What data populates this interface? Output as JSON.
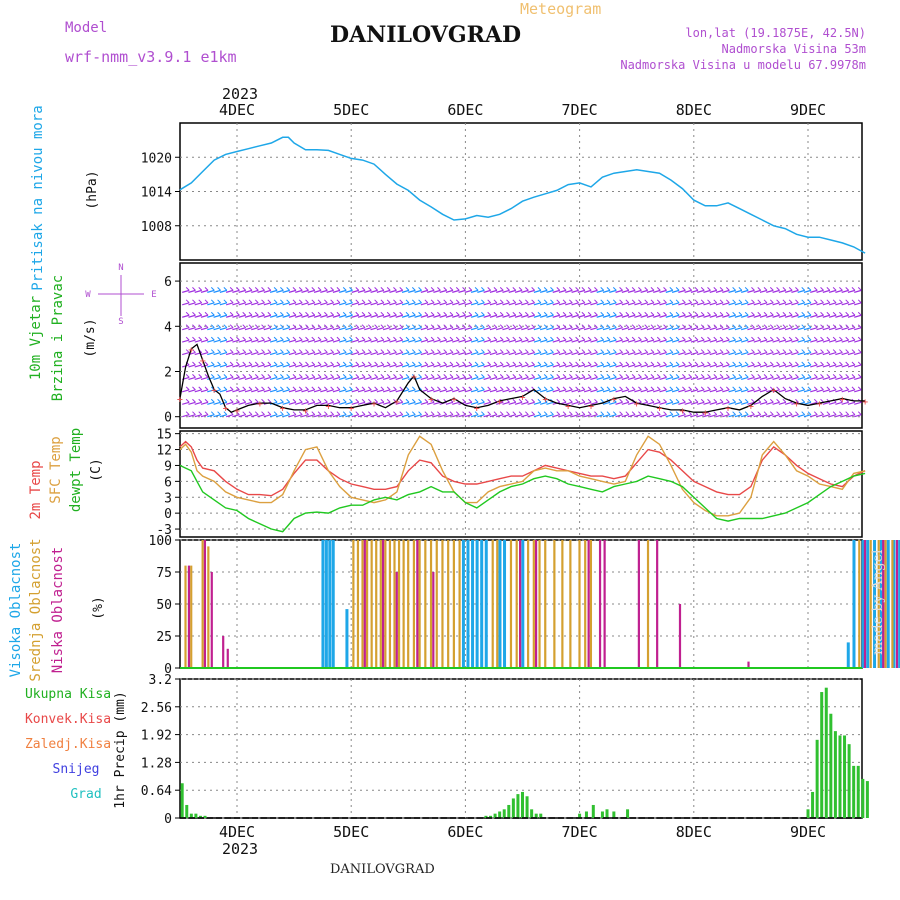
{
  "header": {
    "model_label": "Model",
    "model_name": "wrf-nmm_v3.9.1 e1km",
    "title": "DANILOVGRAD",
    "meteogram_label": "Meteogram",
    "location": "lon,lat (19.1875E, 42.5N)",
    "altitude": "Nadmorska Visina 53m",
    "model_altitude": "Nadmorska Visina u modelu 67.9978m"
  },
  "footer": {
    "station": "DANILOVGRAD"
  },
  "watermark": "made by Angel",
  "time_axis": {
    "year": "2023",
    "day_labels": [
      "4DEC",
      "5DEC",
      "6DEC",
      "7DEC",
      "8DEC",
      "9DEC"
    ]
  },
  "colors": {
    "pressure": "#1ea7e8",
    "t2m": "#e84848",
    "sfc": "#dca040",
    "dewpt": "#20c820",
    "high_cloud": "#1ea7e8",
    "mid_cloud": "#d4a030",
    "low_cloud": "#c02090",
    "precip": "#30c030",
    "wind_a": "#a030e0",
    "wind_b": "#1e90ff"
  },
  "chart_data": [
    {
      "type": "line",
      "panel": "pressure",
      "ylabel_title": "Pritisak na nivou mora",
      "ylabel_unit": "(hPa)",
      "yticks": [
        "1008",
        "1014",
        "1020"
      ],
      "ylim": [
        1002,
        1026
      ],
      "grid": true,
      "series": [
        {
          "x": [
            -0.5,
            -0.4,
            -0.3,
            -0.2,
            -0.1,
            0,
            0.1,
            0.2,
            0.3,
            0.4,
            0.45,
            0.5,
            0.6,
            0.7,
            0.8,
            0.9,
            1,
            1.1,
            1.2,
            1.3,
            1.4,
            1.5,
            1.6,
            1.7,
            1.8,
            1.9,
            2,
            2.1,
            2.2,
            2.3,
            2.4,
            2.5,
            2.6,
            2.7,
            2.8,
            2.9,
            3,
            3.1,
            3.2,
            3.3,
            3.4,
            3.5,
            3.6,
            3.7,
            3.8,
            3.9,
            4,
            4.1,
            4.2,
            4.3,
            4.4,
            4.5,
            4.6,
            4.7,
            4.8,
            4.9,
            5,
            5.1,
            5.2,
            5.3,
            5.4,
            5.5
          ],
          "values": [
            1014.3,
            1015.5,
            1017.5,
            1019.5,
            1020.5,
            1021,
            1021.5,
            1022,
            1022.5,
            1023.5,
            1023.5,
            1022.5,
            1021.3,
            1021.3,
            1021.2,
            1020.5,
            1019.8,
            1019.5,
            1018.8,
            1017,
            1015.3,
            1014.2,
            1012.5,
            1011.3,
            1010,
            1009,
            1009.2,
            1009.8,
            1009.5,
            1010,
            1011,
            1012.3,
            1013,
            1013.6,
            1014.2,
            1015.2,
            1015.5,
            1014.8,
            1016.5,
            1017.2,
            1017.5,
            1017.8,
            1017.5,
            1017.2,
            1016,
            1014.5,
            1012.5,
            1011.5,
            1011.5,
            1012,
            1011,
            1010,
            1009,
            1008,
            1007.5,
            1006.5,
            1006,
            1006,
            1005.5,
            1005,
            1004.3,
            1003.2
          ]
        }
      ]
    },
    {
      "type": "scatter",
      "panel": "wind",
      "ylabel_title": "10m Vjetar",
      "ylabel_title2": "Brzina i Pravac",
      "ylabel_unit": "(m/s)",
      "compass": [
        "N",
        "W",
        "E",
        "S"
      ],
      "yticks": [
        "0",
        "2",
        "4",
        "6"
      ],
      "ylim": [
        -0.5,
        6.8
      ],
      "grid": true,
      "series": [
        {
          "name": "speed",
          "x": [
            -0.5,
            -0.45,
            -0.4,
            -0.35,
            -0.3,
            -0.25,
            -0.2,
            -0.15,
            -0.1,
            -0.05,
            0,
            0.1,
            0.2,
            0.3,
            0.4,
            0.5,
            0.6,
            0.7,
            0.8,
            0.9,
            1,
            1.1,
            1.2,
            1.3,
            1.4,
            1.5,
            1.55,
            1.6,
            1.7,
            1.8,
            1.9,
            2,
            2.1,
            2.2,
            2.3,
            2.4,
            2.5,
            2.6,
            2.7,
            2.8,
            2.9,
            3,
            3.1,
            3.2,
            3.3,
            3.4,
            3.5,
            3.6,
            3.7,
            3.8,
            3.9,
            4,
            4.1,
            4.2,
            4.3,
            4.4,
            4.5,
            4.6,
            4.7,
            4.8,
            4.9,
            5,
            5.1,
            5.2,
            5.3,
            5.4,
            5.5
          ],
          "values": [
            0.8,
            2.2,
            3.0,
            3.2,
            2.5,
            1.8,
            1.2,
            1.0,
            0.4,
            0.2,
            0.3,
            0.5,
            0.6,
            0.6,
            0.4,
            0.3,
            0.3,
            0.5,
            0.5,
            0.4,
            0.4,
            0.5,
            0.6,
            0.4,
            0.7,
            1.5,
            1.8,
            1.2,
            0.8,
            0.6,
            0.8,
            0.5,
            0.4,
            0.5,
            0.7,
            0.8,
            0.9,
            1.2,
            0.8,
            0.6,
            0.5,
            0.4,
            0.5,
            0.6,
            0.8,
            0.9,
            0.6,
            0.5,
            0.4,
            0.3,
            0.3,
            0.2,
            0.2,
            0.3,
            0.4,
            0.3,
            0.5,
            0.9,
            1.2,
            0.8,
            0.6,
            0.5,
            0.6,
            0.7,
            0.8,
            0.7,
            0.7
          ]
        }
      ]
    },
    {
      "type": "line",
      "panel": "temperature",
      "ylabel_title": "2m Temp",
      "ylabel_title2": "SFC Temp",
      "ylabel_title3": "dewpt Temp",
      "ylabel_unit": "(C)",
      "yticks": [
        "-3",
        "0",
        "3",
        "6",
        "9",
        "12",
        "15"
      ],
      "ylim": [
        -4.5,
        15.5
      ],
      "grid": true,
      "x": [
        -0.5,
        -0.45,
        -0.4,
        -0.35,
        -0.3,
        -0.2,
        -0.1,
        0,
        0.1,
        0.2,
        0.3,
        0.4,
        0.5,
        0.6,
        0.7,
        0.8,
        0.9,
        1,
        1.1,
        1.2,
        1.3,
        1.4,
        1.5,
        1.6,
        1.7,
        1.8,
        1.9,
        2,
        2.1,
        2.2,
        2.3,
        2.4,
        2.5,
        2.6,
        2.7,
        2.8,
        2.9,
        3,
        3.1,
        3.2,
        3.3,
        3.4,
        3.5,
        3.6,
        3.7,
        3.8,
        3.9,
        4,
        4.1,
        4.2,
        4.3,
        4.4,
        4.5,
        4.6,
        4.7,
        4.8,
        4.9,
        5,
        5.1,
        5.2,
        5.3,
        5.4,
        5.5
      ],
      "series": [
        {
          "name": "2m Temp",
          "values": [
            12.5,
            13.5,
            12.5,
            10,
            8.5,
            8,
            6,
            4.5,
            3.5,
            3.5,
            3.3,
            4.5,
            7.5,
            10,
            10,
            8,
            6.5,
            5.5,
            5,
            4.5,
            4.5,
            5,
            8,
            10,
            9.5,
            7,
            6,
            5.5,
            5.5,
            6,
            6.5,
            7,
            7,
            8,
            9,
            8.5,
            8,
            7.5,
            7,
            7,
            6.5,
            7,
            9.5,
            12,
            11.5,
            10,
            8,
            6,
            5,
            4,
            3.5,
            3.5,
            5,
            10,
            12.5,
            11,
            9,
            7.5,
            6.5,
            5.5,
            5,
            7,
            8
          ]
        },
        {
          "name": "SFC Temp",
          "values": [
            12,
            13,
            11.5,
            8,
            7,
            6,
            4,
            3,
            2.5,
            2,
            2,
            3.5,
            8,
            12,
            12.5,
            8,
            5,
            3,
            2.5,
            2,
            2.5,
            4,
            11,
            14.5,
            13,
            8,
            4,
            2,
            2,
            4,
            5,
            5.5,
            6,
            8,
            8.5,
            8,
            8,
            7,
            6.5,
            6,
            5.5,
            6,
            11,
            14.5,
            13,
            9,
            4.5,
            2,
            0.5,
            -0.5,
            -0.5,
            0,
            3,
            11,
            13.5,
            11,
            8,
            7,
            5.5,
            5,
            4.5,
            7.5,
            8
          ]
        },
        {
          "name": "dewpt Temp",
          "values": [
            9,
            8.5,
            8,
            6,
            4,
            2.5,
            1,
            0.5,
            -1,
            -2,
            -3,
            -3.5,
            -1,
            0,
            0.2,
            0,
            1,
            1.5,
            1.5,
            2.5,
            3,
            2.5,
            3.5,
            4,
            5,
            4,
            4,
            2,
            1,
            2.5,
            4,
            5,
            5.5,
            6.5,
            7,
            6.5,
            5.5,
            5,
            4.5,
            4,
            5,
            5.5,
            6,
            7,
            6.5,
            6,
            5,
            3,
            1,
            -1,
            -1.5,
            -1,
            -1,
            -1,
            -0.5,
            0,
            1,
            2,
            3.5,
            5,
            6,
            7,
            7.5
          ]
        }
      ]
    },
    {
      "type": "bar",
      "panel": "clouds",
      "ylabel_title": "Visoka Oblacnost",
      "ylabel_title2": "Srednja Oblacnost",
      "ylabel_title3": "Niska Oblacnost",
      "ylabel_unit": "(%)",
      "yticks": [
        "0",
        "25",
        "50",
        "75",
        "100"
      ],
      "ylim": [
        0,
        100
      ],
      "grid": true,
      "series": [
        {
          "name": "Visoka",
          "x": [
            0.75,
            0.78,
            0.81,
            0.84,
            0.96,
            1.98,
            2.02,
            2.06,
            2.1,
            2.14,
            2.18,
            2.3,
            2.34,
            2.5,
            5.35,
            5.4,
            5.48,
            5.52,
            5.58,
            5.64,
            5.7,
            5.75,
            5.8,
            5.86,
            5.92,
            5.97
          ],
          "values": [
            100,
            100,
            100,
            100,
            46,
            100,
            100,
            100,
            100,
            100,
            100,
            100,
            100,
            100,
            20,
            100,
            100,
            100,
            100,
            100,
            100,
            100,
            100,
            88,
            100,
            100
          ]
        },
        {
          "name": "Srednja",
          "x": [
            -0.45,
            -0.4,
            -0.3,
            -0.25,
            1.02,
            1.06,
            1.1,
            1.14,
            1.18,
            1.22,
            1.26,
            1.3,
            1.34,
            1.38,
            1.42,
            1.46,
            1.5,
            1.55,
            1.6,
            1.65,
            1.7,
            1.75,
            1.8,
            1.85,
            1.9,
            1.95,
            2.24,
            2.28,
            2.4,
            2.45,
            2.55,
            2.6,
            2.65,
            2.7,
            2.78,
            2.85,
            2.92,
            3.0,
            3.05,
            3.1,
            3.6,
            5.45,
            5.55,
            5.62,
            5.68,
            5.74,
            5.82,
            5.88,
            5.95
          ],
          "values": [
            80,
            80,
            100,
            95,
            100,
            100,
            100,
            100,
            100,
            100,
            100,
            100,
            100,
            100,
            100,
            100,
            100,
            100,
            100,
            100,
            100,
            100,
            100,
            100,
            100,
            100,
            100,
            100,
            100,
            100,
            100,
            100,
            100,
            100,
            100,
            100,
            100,
            100,
            100,
            100,
            100,
            100,
            100,
            100,
            100,
            100,
            100,
            100,
            100
          ]
        },
        {
          "name": "Niska",
          "x": [
            -0.42,
            -0.28,
            -0.22,
            -0.12,
            -0.08,
            1.12,
            1.28,
            1.4,
            1.58,
            1.72,
            2.48,
            2.62,
            3.08,
            3.18,
            3.22,
            3.52,
            3.68,
            3.88,
            4.48,
            5.5,
            5.66,
            5.78,
            5.9,
            5.99
          ],
          "values": [
            80,
            100,
            75,
            25,
            15,
            100,
            100,
            75,
            100,
            75,
            100,
            100,
            100,
            100,
            100,
            100,
            100,
            50,
            5,
            100,
            100,
            100,
            100,
            100
          ]
        }
      ]
    },
    {
      "type": "bar",
      "panel": "precip",
      "ylabel_title": "1hr Precip (mm)",
      "legend": [
        "Ukupna Kisa",
        "Konvek.Kisa",
        "Zaledj.Kisa",
        "Snijeg",
        "Grad"
      ],
      "yticks": [
        "0",
        "0.64",
        "1.28",
        "1.92",
        "2.56",
        "3.2"
      ],
      "ylim": [
        0,
        3.2
      ],
      "grid": true,
      "series": [
        {
          "name": "Ukupna Kisa",
          "x": [
            -0.48,
            -0.44,
            -0.4,
            -0.36,
            -0.32,
            -0.28,
            2.18,
            2.22,
            2.26,
            2.3,
            2.34,
            2.38,
            2.42,
            2.46,
            2.5,
            2.54,
            2.58,
            2.62,
            2.66,
            3.0,
            3.06,
            3.12,
            3.2,
            3.24,
            3.3,
            3.42,
            5.0,
            5.04,
            5.08,
            5.12,
            5.16,
            5.2,
            5.24,
            5.28,
            5.32,
            5.36,
            5.4,
            5.44,
            5.48,
            5.52
          ],
          "values": [
            0.8,
            0.3,
            0.1,
            0.1,
            0.05,
            0.05,
            0.05,
            0.05,
            0.1,
            0.15,
            0.2,
            0.3,
            0.45,
            0.55,
            0.6,
            0.5,
            0.2,
            0.1,
            0.1,
            0.1,
            0.15,
            0.3,
            0.15,
            0.2,
            0.15,
            0.2,
            0.2,
            0.6,
            1.8,
            2.9,
            3.0,
            2.4,
            2.0,
            1.9,
            1.9,
            1.7,
            1.2,
            1.2,
            0.9,
            0.85
          ]
        }
      ]
    }
  ]
}
